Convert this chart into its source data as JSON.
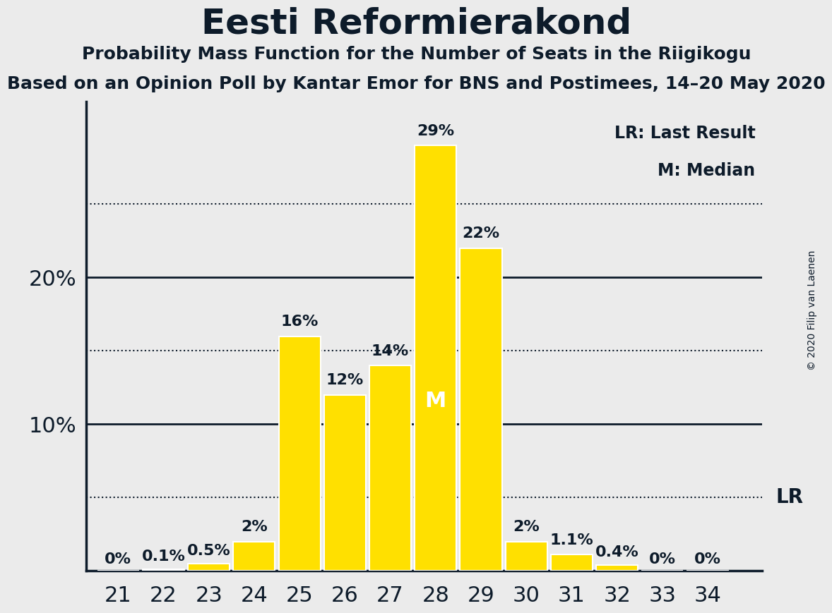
{
  "title": "Eesti Reformierakond",
  "subtitle1": "Probability Mass Function for the Number of Seats in the Riigikogu",
  "subtitle2": "Based on an Opinion Poll by Kantar Emor for BNS and Postimees, 14–20 May 2020",
  "copyright": "© 2020 Filip van Laenen",
  "seats": [
    21,
    22,
    23,
    24,
    25,
    26,
    27,
    28,
    29,
    30,
    31,
    32,
    33,
    34
  ],
  "probabilities": [
    0.0,
    0.1,
    0.5,
    2.0,
    16.0,
    12.0,
    14.0,
    29.0,
    22.0,
    2.0,
    1.1,
    0.4,
    0.0,
    0.0
  ],
  "bar_color": "#FFE000",
  "bar_edge_color": "#FFFFFF",
  "background_color": "#EBEBEB",
  "text_color": "#0D1B2A",
  "median_seat": 28,
  "last_result_seat": 34,
  "lr_annotation_text": "LR",
  "legend_lr": "LR: Last Result",
  "legend_m": "M: Median",
  "yticks": [
    10,
    20
  ],
  "dotted_lines": [
    5,
    15,
    25
  ],
  "solid_lines": [
    10,
    20
  ],
  "ylim": [
    0,
    32
  ],
  "bar_labels": [
    "0%",
    "0.1%",
    "0.5%",
    "2%",
    "16%",
    "12%",
    "14%",
    "29%",
    "22%",
    "2%",
    "1.1%",
    "0.4%",
    "0%",
    "0%"
  ],
  "title_fontsize": 36,
  "subtitle1_fontsize": 18,
  "subtitle2_fontsize": 18,
  "axis_label_fontsize": 22,
  "bar_label_fontsize": 16,
  "median_label_fontsize": 22,
  "copyright_fontsize": 10,
  "lr_fontsize": 20,
  "legend_fontsize": 17
}
